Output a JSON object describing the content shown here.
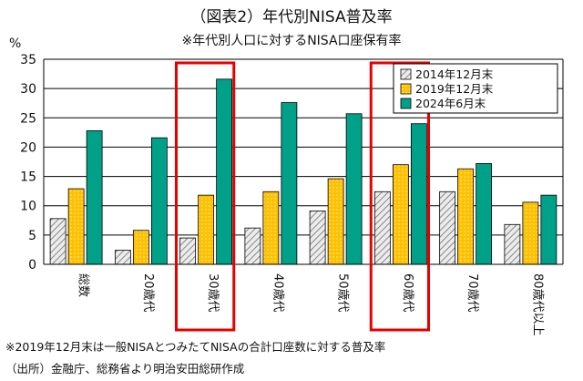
{
  "header": {
    "title": "（図表2）年代別NISA普及率",
    "subtitle": "※年代別人口に対するNISA口座保有率",
    "unit": "%"
  },
  "footer": {
    "note": "※2019年12月末は一般NISAとつみたてNISAの合計口座数に対する普及率",
    "source": "（出所）金融庁、総務省より明治安田総研作成"
  },
  "chart_data": {
    "type": "bar",
    "categories": [
      "総数",
      "20歳代",
      "30歳代",
      "40歳代",
      "50歳代",
      "60歳代",
      "70歳代",
      "80歳代以上"
    ],
    "series": [
      {
        "name": "2014年12月末",
        "values": [
          7.8,
          2.4,
          4.5,
          6.2,
          9.1,
          12.4,
          12.4,
          6.8
        ],
        "color": "#d9d9d9",
        "pattern": "diagonal-hatch"
      },
      {
        "name": "2019年12月末",
        "values": [
          12.9,
          5.8,
          11.8,
          12.4,
          14.6,
          17.0,
          16.3,
          10.6
        ],
        "color": "#ffc000",
        "pattern": "dots"
      },
      {
        "name": "2024年6月末",
        "values": [
          22.8,
          21.6,
          31.6,
          27.6,
          25.7,
          24.0,
          17.2,
          11.8
        ],
        "color": "#00a089",
        "pattern": "solid"
      }
    ],
    "ylim": [
      0,
      35
    ],
    "yticks": [
      0,
      5,
      10,
      15,
      20,
      25,
      30,
      35
    ],
    "grid": true,
    "legend": "top-right",
    "highlighted_categories": [
      "30歳代",
      "60歳代"
    ],
    "highlight_color": "#e60000"
  }
}
